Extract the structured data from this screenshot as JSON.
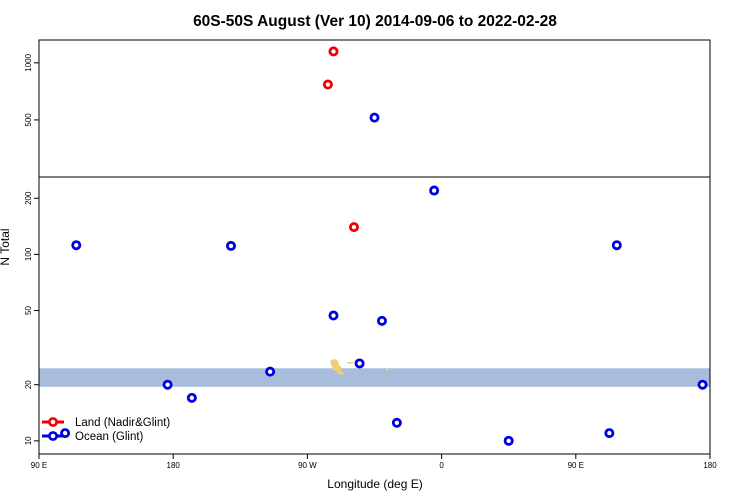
{
  "chart_data": {
    "type": "scatter",
    "title": "60S-50S August (Ver 10)   2014-09-06 to 2022-02-28",
    "xlabel": "Longitude (deg E)",
    "ylabel": "N Total",
    "xlim": [
      90,
      270
    ],
    "x_ticks": [
      {
        "value": 90,
        "label": "90 E"
      },
      {
        "value": 126,
        "label": "180"
      },
      {
        "value": 162,
        "label": "90 W"
      },
      {
        "value": 198,
        "label": "0"
      },
      {
        "value": 234,
        "label": "90 E"
      },
      {
        "value": 270,
        "label": "180"
      }
    ],
    "lower_panel": {
      "scale": "log",
      "ylim": [
        8.5,
        260
      ],
      "y_ticks": [
        10,
        20,
        50,
        100,
        200
      ],
      "highlight_band": {
        "y_from": 19.5,
        "y_to": 24.5,
        "color": "#a7bddb"
      }
    },
    "upper_panel": {
      "scale": "linear",
      "ylim": [
        0,
        1200
      ],
      "y_ticks": [
        500,
        1000
      ]
    },
    "colors": {
      "land": "#ee0000",
      "ocean": "#0000dd",
      "band": "#a7bddb",
      "land_mass": "#f1cd78"
    },
    "series": [
      {
        "name": "Land (Nadir&Glint)",
        "color": "#ee0000",
        "points": [
          {
            "x": 169,
            "y": 1100
          },
          {
            "x": 167.5,
            "y": 810
          },
          {
            "x": 174.5,
            "y": 140
          }
        ]
      },
      {
        "name": "Ocean (Glint)",
        "color": "#0000dd",
        "points": [
          {
            "x": 180,
            "y": 520
          },
          {
            "x": 196,
            "y": 220
          },
          {
            "x": 100,
            "y": 112
          },
          {
            "x": 141.5,
            "y": 111
          },
          {
            "x": 245,
            "y": 112
          },
          {
            "x": 169,
            "y": 47
          },
          {
            "x": 182,
            "y": 44
          },
          {
            "x": 176,
            "y": 26
          },
          {
            "x": 152,
            "y": 23.5
          },
          {
            "x": 124.5,
            "y": 20
          },
          {
            "x": 268,
            "y": 20
          },
          {
            "x": 131,
            "y": 17
          },
          {
            "x": 186,
            "y": 12.5
          },
          {
            "x": 97,
            "y": 11
          },
          {
            "x": 243,
            "y": 11
          },
          {
            "x": 216,
            "y": 10
          }
        ]
      }
    ],
    "legend": {
      "position": "bottom-left"
    }
  }
}
